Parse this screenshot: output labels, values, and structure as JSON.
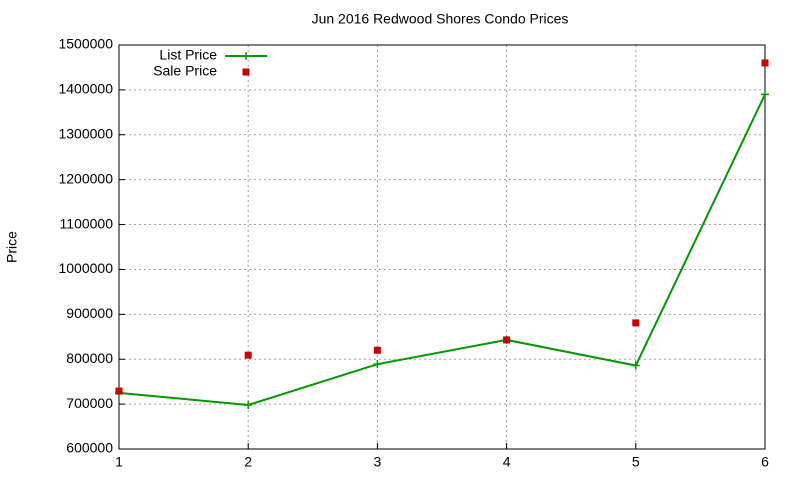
{
  "chart_data": {
    "type": "line",
    "title": "Jun 2016 Redwood Shores Condo Prices",
    "y_label": "Price",
    "x": [
      1,
      2,
      3,
      4,
      5,
      6
    ],
    "xlim": [
      1,
      6
    ],
    "xticks": [
      1,
      2,
      3,
      4,
      5,
      6
    ],
    "ylim": [
      600000,
      1500000
    ],
    "yticks": [
      600000,
      700000,
      800000,
      900000,
      1000000,
      1100000,
      1200000,
      1300000,
      1400000,
      1500000
    ],
    "grid": true,
    "legend": "top-left",
    "series": [
      {
        "name": "List Price",
        "color": "#009900",
        "style": "lines-points",
        "values": [
          725000,
          698000,
          789000,
          843000,
          786000,
          1390000
        ]
      },
      {
        "name": "Sale Price",
        "color": "#cc0000",
        "style": "points",
        "values": [
          729000,
          809000,
          820000,
          843000,
          881000,
          1460000
        ]
      }
    ]
  }
}
